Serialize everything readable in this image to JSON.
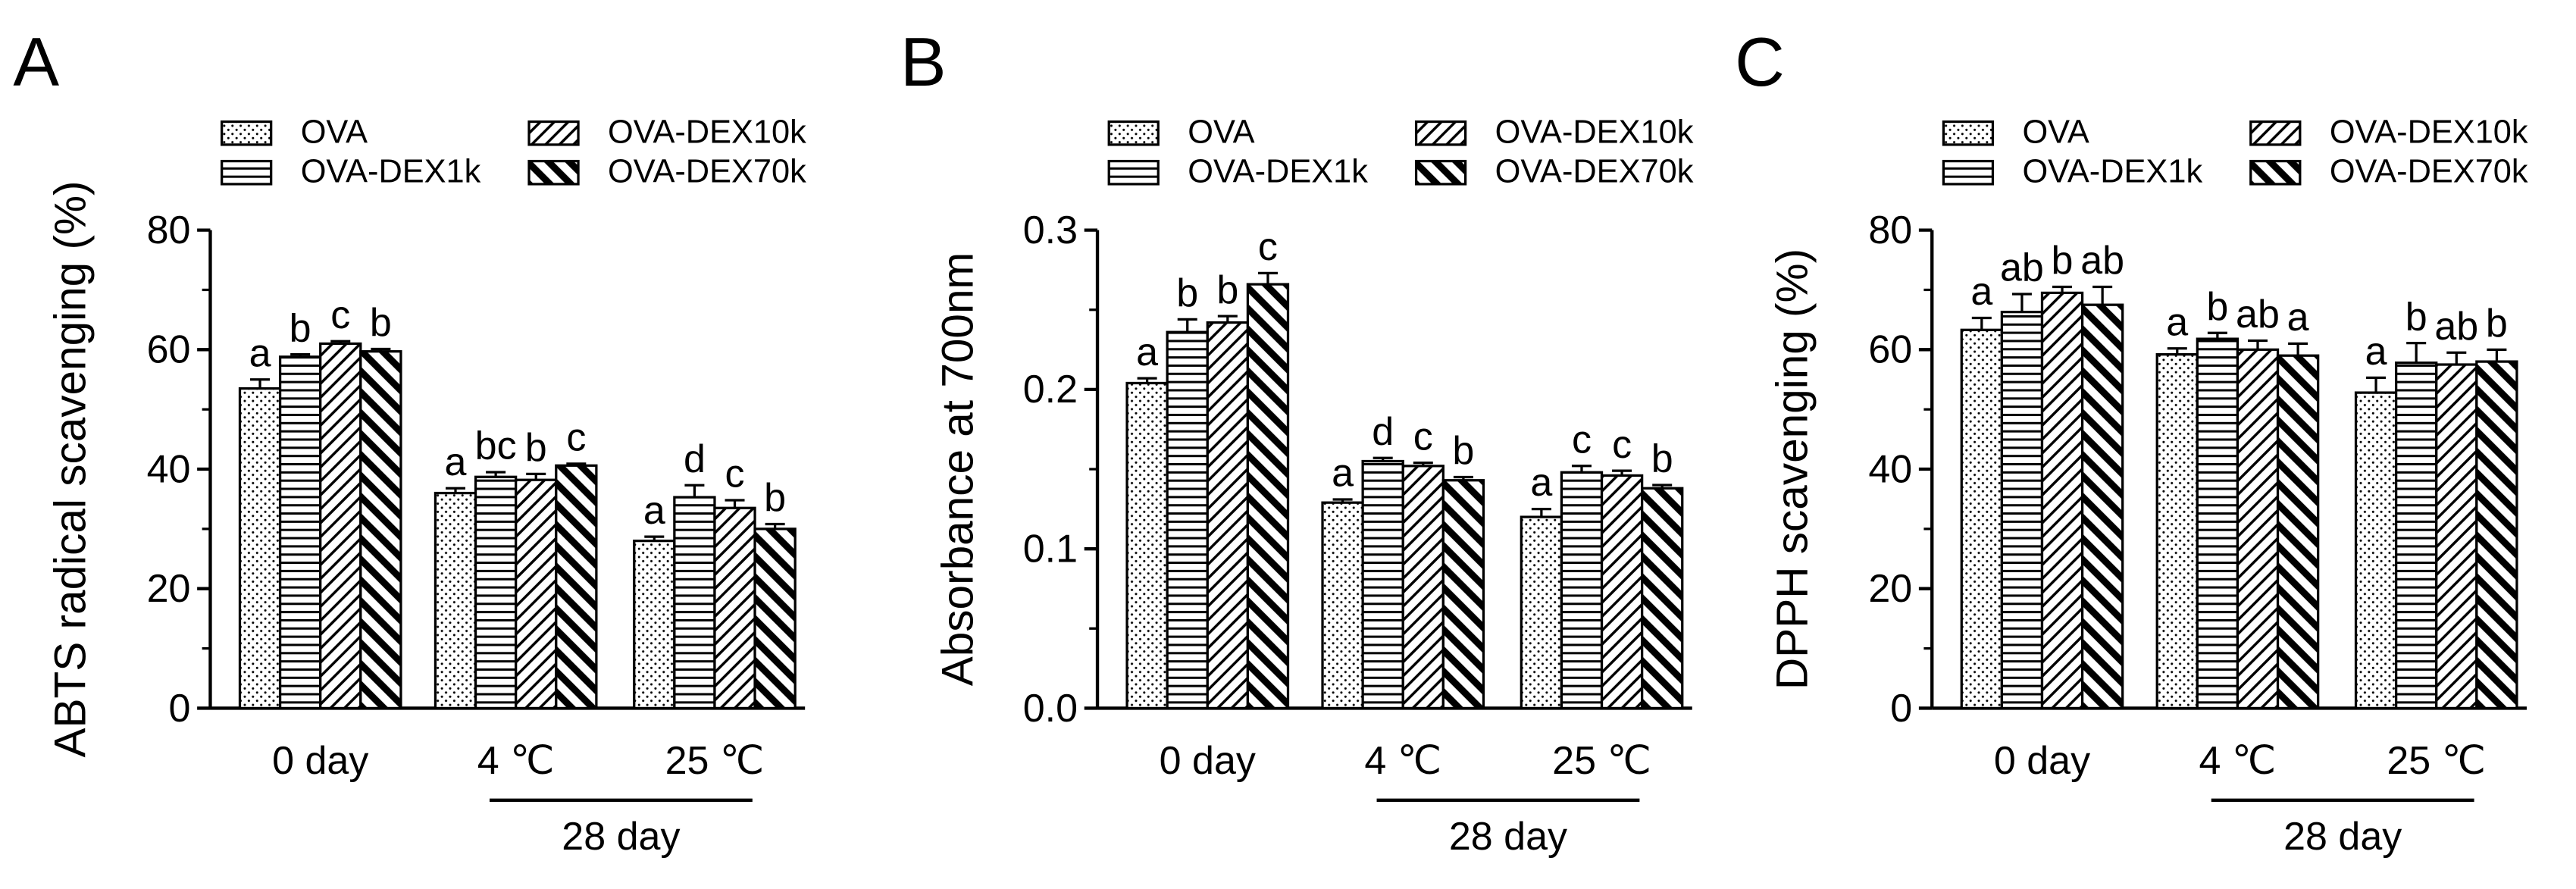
{
  "chart_data": [
    {
      "type": "bar",
      "panel": "A",
      "ylabel": "ABTS radical scavenging (%)",
      "categories": [
        "0 day",
        "4 ℃",
        "25 ℃"
      ],
      "group_label": "28 day",
      "ylim": [
        0,
        80
      ],
      "yticks": [
        0,
        20,
        40,
        60,
        80
      ],
      "series": [
        {
          "name": "OVA",
          "pattern": "dots",
          "color": "#000000",
          "values": [
            53.5,
            36,
            28
          ],
          "errors": [
            1.5,
            0.8,
            0.7
          ],
          "letters": [
            "a",
            "a",
            "a"
          ]
        },
        {
          "name": "OVA-DEX1k",
          "pattern": "hlines",
          "color": "#000000",
          "values": [
            58.8,
            38.7,
            35.3
          ],
          "errors": [
            0.4,
            0.8,
            2
          ],
          "letters": [
            "b",
            "bc",
            "d"
          ]
        },
        {
          "name": "OVA-DEX10k",
          "pattern": "thin-diag",
          "color": "#000000",
          "values": [
            61,
            38.2,
            33.5
          ],
          "errors": [
            0.4,
            1,
            1.3
          ],
          "letters": [
            "c",
            "b",
            "c"
          ]
        },
        {
          "name": "OVA-DEX70k",
          "pattern": "thick-diag",
          "color": "#000000",
          "values": [
            59.7,
            40.6,
            30
          ],
          "errors": [
            0.4,
            0.3,
            0.8
          ],
          "letters": [
            "b",
            "c",
            "b"
          ]
        }
      ]
    },
    {
      "type": "bar",
      "panel": "B",
      "ylabel": "Absorbance at 700nm",
      "categories": [
        "0 day",
        "4 ℃",
        "25 ℃"
      ],
      "group_label": "28 day",
      "ylim": [
        0,
        0.3
      ],
      "yticks": [
        {
          "value": 0,
          "label": "0.0"
        },
        0.1,
        0.2,
        0.3
      ],
      "series": [
        {
          "name": "OVA",
          "pattern": "dots",
          "color": "#000000",
          "values": [
            0.204,
            0.129,
            0.12
          ],
          "errors": [
            0.003,
            0.002,
            0.005
          ],
          "letters": [
            "a",
            "a",
            "a"
          ]
        },
        {
          "name": "OVA-DEX1k",
          "pattern": "hlines",
          "color": "#000000",
          "values": [
            0.236,
            0.155,
            0.148
          ],
          "errors": [
            0.008,
            0.002,
            0.004
          ],
          "letters": [
            "b",
            "d",
            "c"
          ]
        },
        {
          "name": "OVA-DEX10k",
          "pattern": "thin-diag",
          "color": "#000000",
          "values": [
            0.242,
            0.152,
            0.146
          ],
          "errors": [
            0.004,
            0.002,
            0.003
          ],
          "letters": [
            "b",
            "c",
            "c"
          ]
        },
        {
          "name": "OVA-DEX70k",
          "pattern": "thick-diag",
          "color": "#000000",
          "values": [
            0.266,
            0.143,
            0.138
          ],
          "errors": [
            0.007,
            0.002,
            0.002
          ],
          "letters": [
            "c",
            "b",
            "b"
          ]
        }
      ]
    },
    {
      "type": "bar",
      "panel": "C",
      "ylabel": "DPPH scavenging (%)",
      "categories": [
        "0 day",
        "4 ℃",
        "25 ℃"
      ],
      "group_label": "28 day",
      "ylim": [
        0,
        80
      ],
      "yticks": [
        0,
        20,
        40,
        60,
        80
      ],
      "series": [
        {
          "name": "OVA",
          "pattern": "dots",
          "color": "#000000",
          "values": [
            63.3,
            59.2,
            52.8
          ],
          "errors": [
            2,
            1,
            2.5
          ],
          "letters": [
            "a",
            "a",
            "a"
          ]
        },
        {
          "name": "OVA-DEX1k",
          "pattern": "hlines",
          "color": "#000000",
          "values": [
            66.3,
            61.8,
            57.8
          ],
          "errors": [
            3,
            1,
            3.3
          ],
          "letters": [
            "ab",
            "b",
            "b"
          ]
        },
        {
          "name": "OVA-DEX10k",
          "pattern": "thin-diag",
          "color": "#000000",
          "values": [
            69.5,
            60,
            57.5
          ],
          "errors": [
            1,
            1.5,
            2
          ],
          "letters": [
            "b",
            "ab",
            "ab"
          ]
        },
        {
          "name": "OVA-DEX70k",
          "pattern": "thick-diag",
          "color": "#000000",
          "values": [
            67.5,
            59,
            58
          ],
          "errors": [
            3,
            2,
            2
          ],
          "letters": [
            "ab",
            "a",
            "b"
          ]
        }
      ]
    }
  ]
}
